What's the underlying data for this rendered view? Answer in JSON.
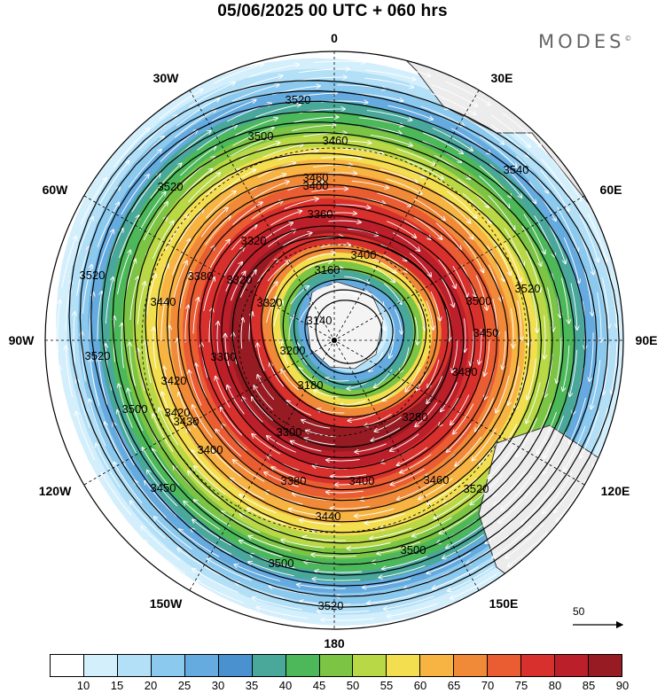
{
  "title": "05/06/2025  00 UTC  + 060 hrs",
  "brand": "MODES",
  "brand_mark": "©",
  "lon_labels": [
    {
      "id": "lon-0",
      "text": "0"
    },
    {
      "id": "lon-30e",
      "text": "30E"
    },
    {
      "id": "lon-60e",
      "text": "60E"
    },
    {
      "id": "lon-90e",
      "text": "90E"
    },
    {
      "id": "lon-120e",
      "text": "120E"
    },
    {
      "id": "lon-150e",
      "text": "150E"
    },
    {
      "id": "lon-180",
      "text": "180"
    },
    {
      "id": "lon-150w",
      "text": "150W"
    },
    {
      "id": "lon-120w",
      "text": "120W"
    },
    {
      "id": "lon-90w",
      "text": "90W"
    },
    {
      "id": "lon-60w",
      "text": "60W"
    },
    {
      "id": "lon-30w",
      "text": "30W"
    }
  ],
  "vector_reference": "50",
  "contour_labels": [
    "3520",
    "3500",
    "3460",
    "3400",
    "3460",
    "3540",
    "3520",
    "3520",
    "3500",
    "3400",
    "3380",
    "3320",
    "3360",
    "3160",
    "3140",
    "3180",
    "3420",
    "3420",
    "3320",
    "3300",
    "3520",
    "3500",
    "3480",
    "3280",
    "3300",
    "3380",
    "3400",
    "3440",
    "3460",
    "3500",
    "3520",
    "3500",
    "3520",
    "3400",
    "3450",
    "3430",
    "3450",
    "3520",
    "3440",
    "3200",
    "3320"
  ],
  "colorbar": {
    "labels": [
      "10",
      "15",
      "20",
      "25",
      "30",
      "35",
      "40",
      "45",
      "50",
      "55",
      "60",
      "65",
      "70",
      "75",
      "80",
      "85",
      "90"
    ],
    "colors": [
      "#ffffff",
      "#d4effc",
      "#b3e0f7",
      "#8cc9ee",
      "#65abdf",
      "#4a92cf",
      "#4aa89b",
      "#4cb85a",
      "#7cc443",
      "#b9d846",
      "#f2de4f",
      "#f7b443",
      "#f18a38",
      "#ea5c32",
      "#d8302d",
      "#bb1f2a",
      "#961b22"
    ]
  },
  "colors": {
    "land": "#ececec",
    "contour": "#000000",
    "streamline": "#ffffff"
  }
}
